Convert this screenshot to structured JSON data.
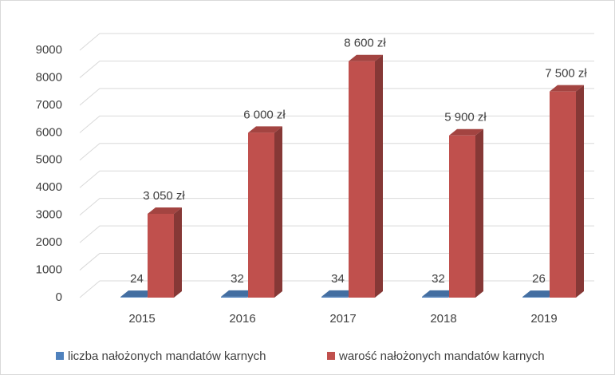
{
  "chart_data": {
    "type": "bar",
    "categories": [
      "2015",
      "2016",
      "2017",
      "2018",
      "2019"
    ],
    "series": [
      {
        "name": "liczba nałożonych mandatów karnych",
        "color": "#4f81bd",
        "values": [
          24,
          32,
          34,
          32,
          26
        ]
      },
      {
        "name": "warość nałożonych mandatów karnych",
        "color": "#c0504d",
        "values": [
          3050,
          6000,
          8600,
          5900,
          7500
        ],
        "value_labels": [
          "3 050 zł",
          "6 000 zł",
          "8 600 zł",
          "5 900 zł",
          "7 500 zł"
        ]
      }
    ],
    "ylim": [
      0,
      9000
    ],
    "yticks": [
      0,
      1000,
      2000,
      3000,
      4000,
      5000,
      6000,
      7000,
      8000,
      9000
    ],
    "grid": true,
    "legend": "bottom"
  }
}
